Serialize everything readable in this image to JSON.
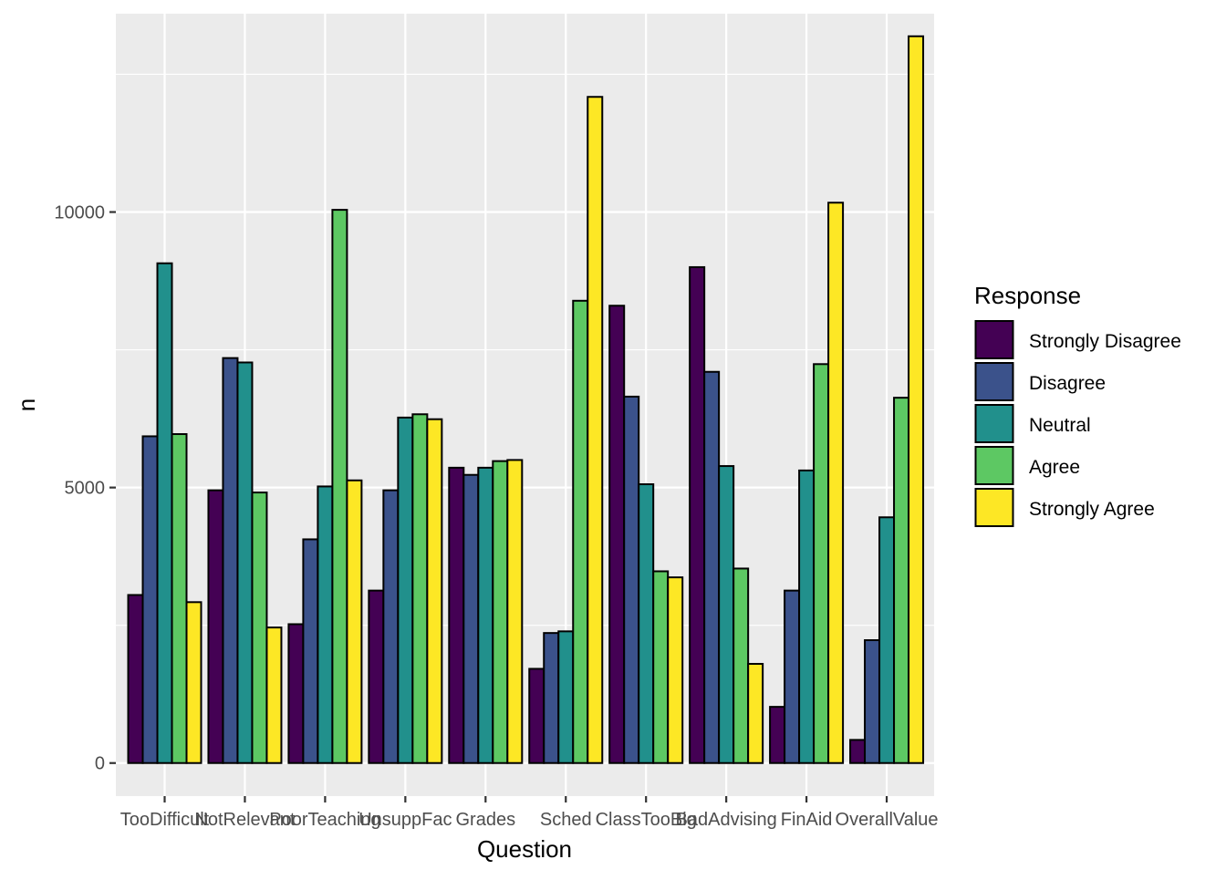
{
  "chart_data": {
    "type": "bar",
    "xlabel": "Question",
    "ylabel": "n",
    "ylim": [
      -600,
      13600
    ],
    "yticks": [
      0,
      5000,
      10000
    ],
    "grid": true,
    "legend_position": "right",
    "legend_title": "Response",
    "categories": [
      "TooDifficult",
      "NotRelevant",
      "PoorTeaching",
      "UnsuppFac",
      "Grades",
      "Sched",
      "ClassTooBig",
      "BadAdvising",
      "FinAid",
      "OverallValue"
    ],
    "series": [
      {
        "name": "Strongly Disagree",
        "color": "#440154",
        "values": [
          3050,
          4950,
          2520,
          3130,
          5360,
          1710,
          8300,
          9000,
          1020,
          420
        ]
      },
      {
        "name": "Disagree",
        "color": "#3B528B",
        "values": [
          5930,
          7350,
          4060,
          4950,
          5230,
          2360,
          6650,
          7100,
          3130,
          2230
        ]
      },
      {
        "name": "Neutral",
        "color": "#21908C",
        "values": [
          9070,
          7270,
          5020,
          6270,
          5360,
          2390,
          5060,
          5390,
          5310,
          4460
        ]
      },
      {
        "name": "Agree",
        "color": "#5DC863",
        "values": [
          5970,
          4910,
          10040,
          6330,
          5480,
          8390,
          3480,
          3530,
          7240,
          6630
        ]
      },
      {
        "name": "Strongly Agree",
        "color": "#FDE725",
        "values": [
          2920,
          2460,
          5130,
          6240,
          5500,
          12090,
          3370,
          1800,
          10170,
          13190
        ]
      }
    ]
  }
}
